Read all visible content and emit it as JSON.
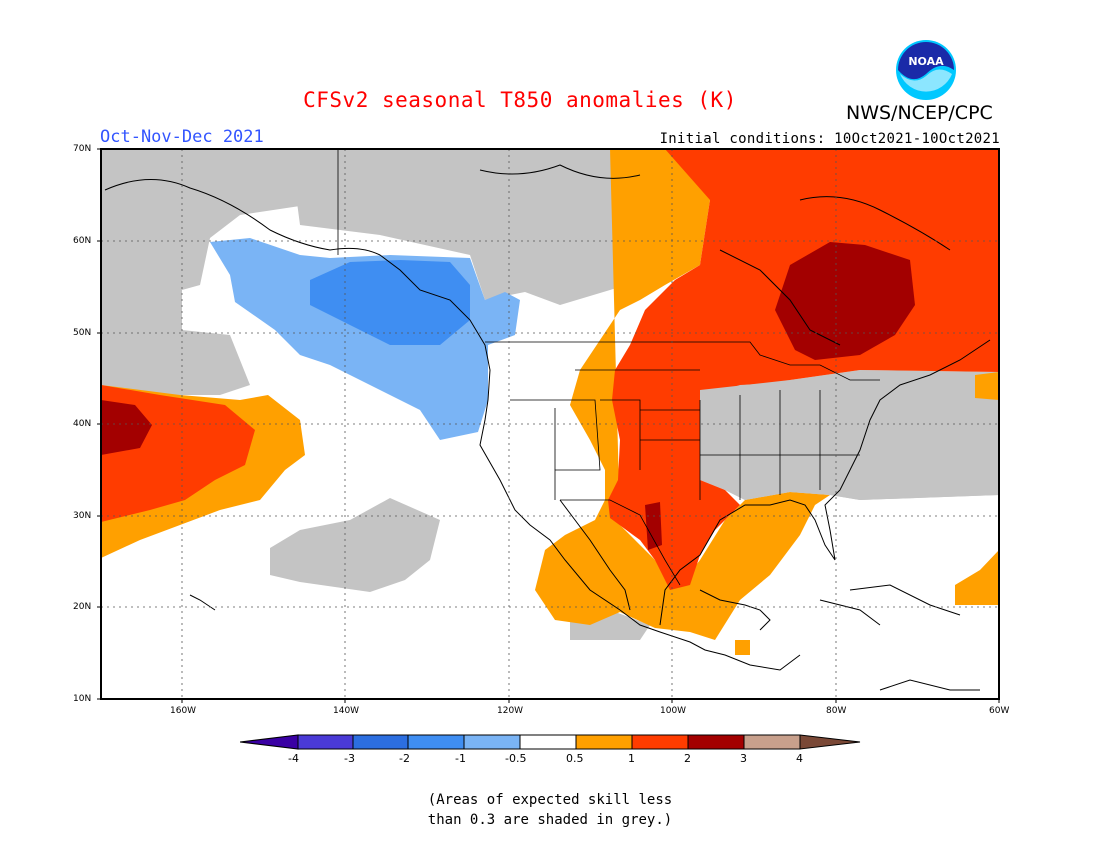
{
  "header": {
    "title": "CFSv2 seasonal T850 anomalies (K)",
    "agency": "NWS/NCEP/CPC",
    "logo_text": "NOAA",
    "season": "Oct-Nov-Dec 2021",
    "initial_conditions": "Initial conditions: 10Oct2021-10Oct2021"
  },
  "map": {
    "lat_labels": [
      "70N",
      "60N",
      "50N",
      "40N",
      "30N",
      "20N",
      "10N"
    ],
    "lon_labels": [
      "160W",
      "140W",
      "120W",
      "100W",
      "80W",
      "60W"
    ],
    "colors": {
      "grey": "#c4c4c4",
      "neg_0_5_1": "#7ab4f5",
      "neg_1_2": "#3f8ef2",
      "pos_0_5_1": "#ffa000",
      "pos_1_2": "#ff3c00",
      "pos_2_3": "#a30000",
      "land_outline": "#000000"
    }
  },
  "legend": {
    "ticks": [
      "-4",
      "-3",
      "-2",
      "-1",
      "-0.5",
      "0.5",
      "1",
      "2",
      "3",
      "4"
    ],
    "colors": [
      "#3a00a4",
      "#4a3ad6",
      "#2c6ee0",
      "#3f8ef2",
      "#7ab4f5",
      "#ffffff",
      "#ffa000",
      "#ff3c00",
      "#a30000",
      "#c8a08c",
      "#7a4836"
    ]
  },
  "footnote": {
    "line1": "(Areas of expected skill less",
    "line2": "than 0.3 are shaded in grey.)"
  }
}
